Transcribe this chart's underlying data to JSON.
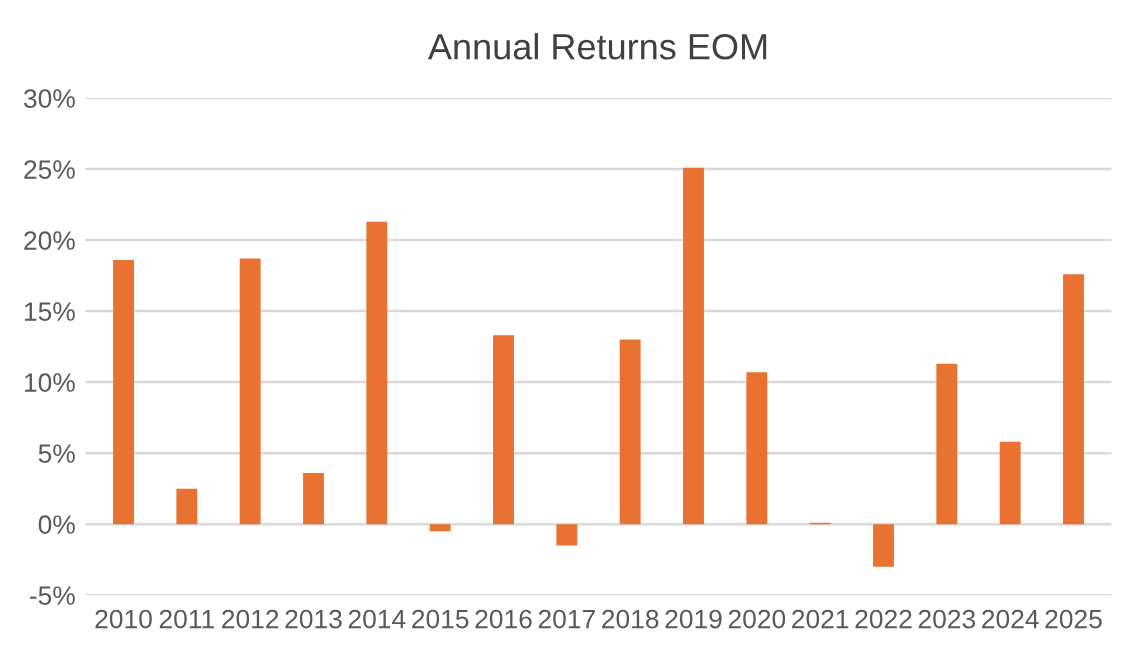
{
  "chart_data": {
    "type": "bar",
    "title": "Annual Returns EOM",
    "categories": [
      "2010",
      "2011",
      "2012",
      "2013",
      "2014",
      "2015",
      "2016",
      "2017",
      "2018",
      "2019",
      "2020",
      "2021",
      "2022",
      "2023",
      "2024",
      "2025"
    ],
    "values": [
      18.6,
      2.5,
      18.7,
      3.6,
      21.3,
      -0.5,
      13.3,
      -1.5,
      13.0,
      25.1,
      10.7,
      0.1,
      -3.0,
      11.3,
      5.8,
      17.6
    ],
    "color": "#e97132",
    "ylim": [
      -5,
      30
    ],
    "yticks": [
      {
        "value": -5,
        "label": "-5%"
      },
      {
        "value": 0,
        "label": "0%"
      },
      {
        "value": 5,
        "label": "5%"
      },
      {
        "value": 10,
        "label": "10%"
      },
      {
        "value": 15,
        "label": "15%"
      },
      {
        "value": 20,
        "label": "20%"
      },
      {
        "value": 25,
        "label": "25%"
      },
      {
        "value": 30,
        "label": "30%"
      }
    ],
    "grid": "y"
  }
}
